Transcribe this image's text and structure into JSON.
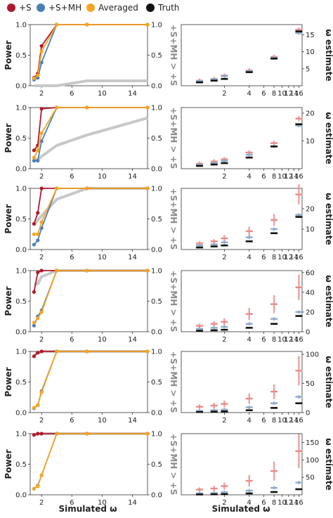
{
  "legend": [
    {
      "label": "+S",
      "color": "#b2182b"
    },
    {
      "label": "+S+MH",
      "color": "#4a7fb5"
    },
    {
      "label": "Averaged",
      "color": "#f5a623"
    },
    {
      "label": "Truth",
      "color": "#111111"
    }
  ],
  "labels": {
    "power": "Power",
    "right_axis": "+S+MH > +S",
    "estimate": "ω estimate",
    "simulated": "Simulated ω"
  },
  "colors": {
    "S": "#b2182b",
    "SMH": "#4a7fb5",
    "Avg": "#f5a623",
    "Truth": "#111111",
    "diff": "#c8c8c8",
    "S_est": "#e88a8a",
    "SMH_est": "#8fa9c9"
  },
  "chart_data": [
    {
      "type": "line",
      "x": [
        1,
        1.5,
        2,
        4,
        8,
        16
      ],
      "xlim": [
        0.5,
        16
      ],
      "ylim": [
        0,
        1
      ],
      "x_ticks": [
        "2",
        "6",
        "10",
        "14"
      ],
      "y_ticks": [
        "0.0",
        "0.5",
        "1.0"
      ],
      "right_y_ticks": [
        "0.0",
        "0.5",
        "1.0"
      ],
      "series": [
        {
          "name": "+S",
          "values": [
            0.13,
            0.2,
            0.65,
            1.0,
            1.0,
            1.0
          ]
        },
        {
          "name": "+S+MH",
          "values": [
            0.1,
            0.13,
            0.38,
            1.0,
            1.0,
            1.0
          ]
        },
        {
          "name": "Averaged",
          "values": [
            0.12,
            0.17,
            0.56,
            1.0,
            1.0,
            1.0
          ]
        }
      ],
      "diff_values": [
        0.0,
        0.0,
        0.0,
        0.0,
        0.08,
        0.08
      ]
    },
    {
      "type": "scatter",
      "x_ticks": [
        "2",
        "4",
        "6",
        "8",
        "10",
        "12",
        "14",
        "16"
      ],
      "y_ticks": [
        "5",
        "10",
        "15"
      ],
      "ylim": [
        0,
        18
      ],
      "truth": [
        1,
        1.5,
        2,
        4,
        8,
        16
      ],
      "s_est": [
        1.5,
        2.0,
        3.0,
        4.5,
        8.5,
        16.5
      ],
      "smh_est": [
        1.4,
        1.9,
        2.8,
        4.3,
        8.2,
        15.5
      ]
    },
    {
      "type": "line",
      "x": [
        1,
        1.5,
        2,
        4,
        8,
        16
      ],
      "xlim": [
        0.5,
        16
      ],
      "ylim": [
        0,
        1
      ],
      "x_ticks": [
        "2",
        "6",
        "10",
        "14"
      ],
      "y_ticks": [
        "0.0",
        "0.5",
        "1.0"
      ],
      "right_y_ticks": [
        "0.0",
        "0.5",
        "1.0"
      ],
      "series": [
        {
          "name": "+S",
          "values": [
            0.3,
            0.38,
            0.98,
            1.0,
            1.0,
            1.0
          ]
        },
        {
          "name": "+S+MH",
          "values": [
            0.13,
            0.13,
            0.45,
            1.0,
            1.0,
            1.0
          ]
        },
        {
          "name": "Averaged",
          "values": [
            0.18,
            0.3,
            0.58,
            1.0,
            1.0,
            1.0
          ]
        }
      ],
      "diff_values": [
        0.15,
        0.15,
        0.2,
        0.38,
        0.55,
        0.83
      ]
    },
    {
      "type": "scatter",
      "x_ticks": [
        "2",
        "4",
        "6",
        "8",
        "10",
        "12",
        "14",
        "16"
      ],
      "y_ticks": [
        "10",
        "20"
      ],
      "ylim": [
        0,
        22
      ],
      "truth": [
        1,
        1.5,
        2,
        4,
        8,
        16
      ],
      "s_est": [
        1.8,
        2.6,
        3.4,
        5.8,
        9.2,
        18.0
      ],
      "smh_est": [
        1.5,
        2.0,
        2.8,
        5.0,
        8.0,
        15.5
      ]
    },
    {
      "type": "line",
      "x": [
        1,
        1.5,
        2,
        4,
        8,
        16
      ],
      "xlim": [
        0.5,
        16
      ],
      "ylim": [
        0,
        1
      ],
      "x_ticks": [
        "2",
        "6",
        "10",
        "14"
      ],
      "y_ticks": [
        "0.0",
        "0.5",
        "1.0"
      ],
      "right_y_ticks": [
        "0.0",
        "0.5",
        "1.0"
      ],
      "series": [
        {
          "name": "+S",
          "values": [
            0.42,
            0.6,
            1.0,
            1.0,
            1.0,
            1.0
          ]
        },
        {
          "name": "+S+MH",
          "values": [
            0.08,
            0.15,
            0.35,
            1.0,
            1.0,
            1.0
          ]
        },
        {
          "name": "Averaged",
          "values": [
            0.25,
            0.25,
            0.45,
            1.0,
            1.0,
            1.0
          ]
        }
      ],
      "diff_values": [
        0.4,
        0.48,
        0.55,
        0.82,
        1.0,
        1.0
      ]
    },
    {
      "type": "scatter",
      "x_ticks": [
        "2",
        "4",
        "6",
        "8",
        "10",
        "12",
        "14",
        "16"
      ],
      "y_ticks": [
        "10",
        "20"
      ],
      "ylim": [
        0,
        30
      ],
      "truth": [
        1,
        1.5,
        2,
        4,
        8,
        16
      ],
      "s_est": [
        3.0,
        4.0,
        5.5,
        9.0,
        14.5,
        27.0
      ],
      "smh_est": [
        2.0,
        2.5,
        3.5,
        6.0,
        10.0,
        17.0
      ]
    },
    {
      "type": "line",
      "x": [
        1,
        1.5,
        2,
        4,
        8,
        16
      ],
      "xlim": [
        0.5,
        16
      ],
      "ylim": [
        0,
        1
      ],
      "x_ticks": [
        "2",
        "6",
        "10",
        "14"
      ],
      "y_ticks": [
        "0.0",
        "0.5",
        "1.0"
      ],
      "right_y_ticks": [
        "0.0",
        "0.5",
        "1.0"
      ],
      "series": [
        {
          "name": "+S",
          "values": [
            0.65,
            0.97,
            1.0,
            1.0,
            1.0,
            1.0
          ]
        },
        {
          "name": "+S+MH",
          "values": [
            0.1,
            0.25,
            0.35,
            1.0,
            1.0,
            1.0
          ]
        },
        {
          "name": "Averaged",
          "values": [
            0.15,
            0.22,
            0.32,
            1.0,
            1.0,
            1.0
          ]
        }
      ],
      "diff_values": [
        0.78,
        0.78,
        0.9,
        1.0,
        1.0,
        1.0
      ]
    },
    {
      "type": "scatter",
      "x_ticks": [
        "2",
        "4",
        "6",
        "8",
        "10",
        "12",
        "14",
        "16"
      ],
      "y_ticks": [
        "0",
        "20",
        "40",
        "60"
      ],
      "ylim": [
        0,
        62
      ],
      "truth": [
        1,
        1.5,
        2,
        4,
        8,
        16
      ],
      "s_est": [
        6,
        8,
        10,
        18,
        28,
        45
      ],
      "smh_est": [
        3,
        4,
        5,
        8,
        13,
        20
      ]
    },
    {
      "type": "line",
      "x": [
        1,
        1.5,
        2,
        4,
        8,
        16
      ],
      "xlim": [
        0.5,
        16
      ],
      "ylim": [
        0,
        1
      ],
      "x_ticks": [
        "2",
        "6",
        "10",
        "14"
      ],
      "y_ticks": [
        "0.0",
        "0.5",
        "1.0"
      ],
      "right_y_ticks": [
        "0.0",
        "0.5",
        "1.0"
      ],
      "series": [
        {
          "name": "+S",
          "values": [
            0.92,
            0.98,
            1.0,
            1.0,
            1.0,
            1.0
          ]
        },
        {
          "name": "+S+MH",
          "values": [
            0.07,
            0.12,
            0.35,
            1.0,
            1.0,
            1.0
          ]
        },
        {
          "name": "Averaged",
          "values": [
            0.08,
            0.12,
            0.33,
            1.0,
            1.0,
            1.0
          ]
        }
      ],
      "diff_values": [
        0.95,
        0.97,
        1.0,
        1.0,
        1.0,
        1.0
      ]
    },
    {
      "type": "scatter",
      "x_ticks": [
        "2",
        "4",
        "6",
        "8",
        "10",
        "12",
        "14",
        "16"
      ],
      "y_ticks": [
        "0",
        "50",
        "100"
      ],
      "ylim": [
        0,
        105
      ],
      "truth": [
        1,
        1.5,
        2,
        4,
        8,
        16
      ],
      "s_est": [
        10,
        12,
        15,
        24,
        36,
        72
      ],
      "smh_est": [
        3,
        4,
        5,
        9,
        16,
        27
      ]
    },
    {
      "type": "line",
      "x": [
        1,
        1.5,
        2,
        4,
        8,
        16
      ],
      "xlim": [
        0.5,
        16
      ],
      "ylim": [
        0,
        1
      ],
      "x_ticks": [
        "2",
        "6",
        "10",
        "14"
      ],
      "y_ticks": [
        "0.0",
        "0.5",
        "1.0"
      ],
      "right_y_ticks": [
        "0.0",
        "0.5",
        "1.0"
      ],
      "series": [
        {
          "name": "+S",
          "values": [
            0.98,
            1.0,
            1.0,
            1.0,
            1.0,
            1.0
          ]
        },
        {
          "name": "+S+MH",
          "values": [
            0.1,
            0.15,
            0.32,
            1.0,
            1.0,
            1.0
          ]
        },
        {
          "name": "Averaged",
          "values": [
            0.1,
            0.14,
            0.32,
            1.0,
            1.0,
            1.0
          ]
        }
      ],
      "diff_values": [
        0.98,
        1.0,
        1.0,
        1.0,
        1.0,
        1.0
      ]
    },
    {
      "type": "scatter",
      "x_ticks": [
        "2",
        "4",
        "6",
        "8",
        "10",
        "12",
        "14",
        "16"
      ],
      "y_ticks": [
        "50",
        "100",
        "150"
      ],
      "ylim": [
        0,
        175
      ],
      "truth": [
        1,
        1.5,
        2,
        4,
        8,
        16
      ],
      "s_est": [
        15,
        18,
        25,
        40,
        68,
        125
      ],
      "smh_est": [
        4,
        5,
        7,
        12,
        20,
        35
      ]
    }
  ]
}
